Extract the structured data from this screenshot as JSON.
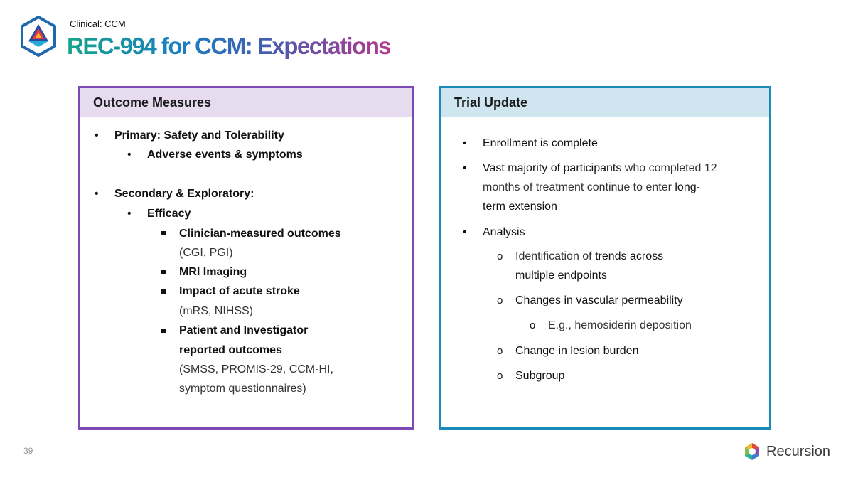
{
  "header": {
    "kicker": "Clinical: CCM",
    "title": "REC-994 for CCM: Expectations"
  },
  "outcome_measures": {
    "heading": "Outcome Measures",
    "primary": "Primary: Safety and Tolerability",
    "primary_sub": "Adverse events & symptoms",
    "secondary": "Secondary & Exploratory:",
    "efficacy": "Efficacy",
    "item1_bold": "Clinician-measured outcomes",
    "item1_detail": "(CGI, PGI)",
    "item2_bold": "MRI Imaging",
    "item3_bold": "Impact of acute stroke",
    "item3_detail": "(mRS, NIHSS)",
    "item4_bold_line1": "Patient and Investigator",
    "item4_bold_line2": "reported outcomes",
    "item4_detail_line1": "(SMSS, PROMIS-29, CCM-HI,",
    "item4_detail_line2": "symptom questionnaires)"
  },
  "trial_update": {
    "heading": "Trial Update",
    "enrollment": "Enrollment is complete",
    "majority_bold": "Vast majority of participants",
    "majority_text1": " who completed 12",
    "majority_text2": "months of treatment continue to enter ",
    "majority_bold2": "long-",
    "majority_bold3": "term extension",
    "analysis": "Analysis",
    "trends_text": "Identification of ",
    "trends_bold1": "trends across",
    "trends_bold2": "multiple endpoints",
    "vascular": "Changes in vascular permeability",
    "example": "E.g., hemosiderin deposition",
    "lesion": "Change in lesion burden",
    "subgroup": "Subgroup"
  },
  "footer": {
    "page_number": "39",
    "brand": "Recursion"
  },
  "colors": {
    "left_border": "#7d4ab5",
    "right_border": "#1a8ab8"
  }
}
